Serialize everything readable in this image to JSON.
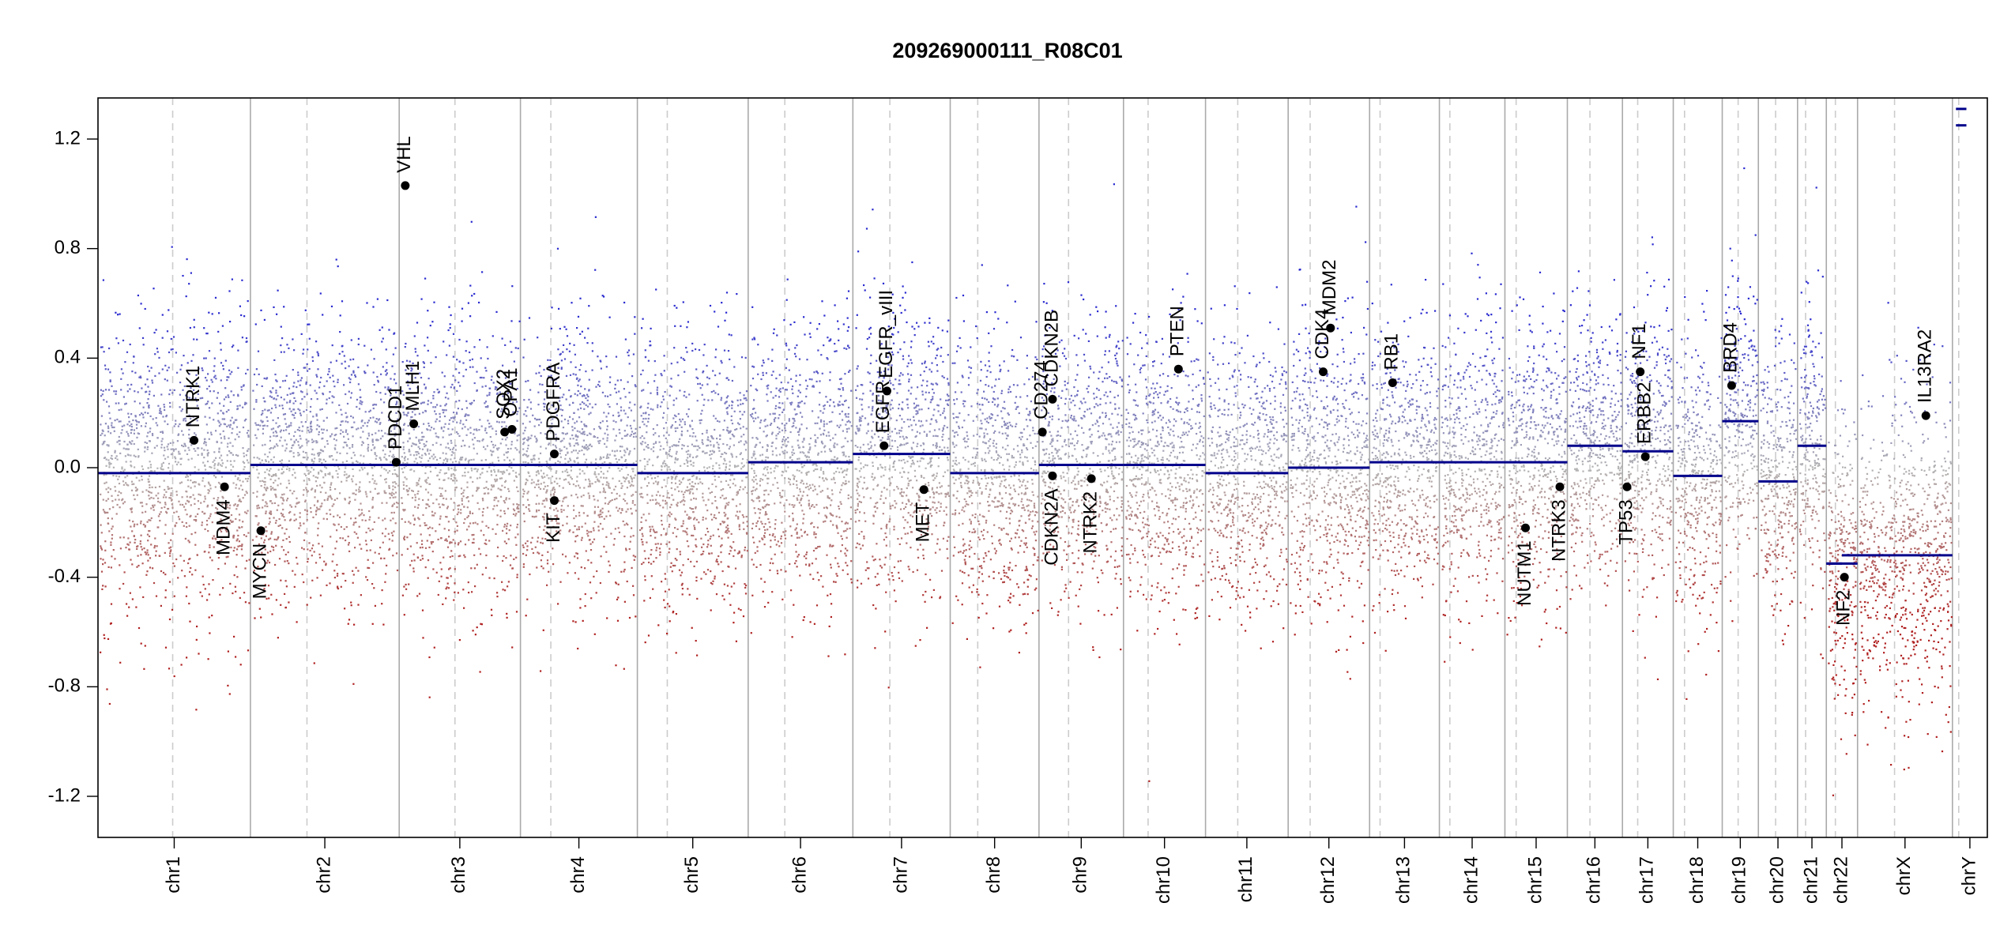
{
  "chart_data": {
    "type": "scatter",
    "title": "209269000111_R08C01",
    "xlabel": "",
    "ylabel": "",
    "ylim": [
      -1.35,
      1.35
    ],
    "yticks": [
      -1.2,
      -0.8,
      -0.4,
      0.0,
      0.4,
      0.8,
      1.2
    ],
    "ytick_labels": [
      "-1.2",
      "-0.8",
      "-0.4",
      "0.0",
      "0.4",
      "0.8",
      "1.2"
    ],
    "grid": false,
    "colors": {
      "gain": "#2a2ad0",
      "neutral": "#b4b4b4",
      "loss": "#b02020",
      "segment": "#00008b",
      "gene_point": "#000000",
      "separator": "#aaaaaa",
      "centromere": "#cccccc"
    },
    "chromosomes": [
      {
        "name": "chr1",
        "length": 249,
        "centromere": 0.49,
        "segment": -0.02,
        "spread": 0.26
      },
      {
        "name": "chr2",
        "length": 243,
        "centromere": 0.38,
        "segment": 0.01,
        "spread": 0.24
      },
      {
        "name": "chr3",
        "length": 198,
        "centromere": 0.46,
        "segment": 0.01,
        "spread": 0.25
      },
      {
        "name": "chr4",
        "length": 191,
        "centromere": 0.26,
        "segment": 0.01,
        "spread": 0.24
      },
      {
        "name": "chr5",
        "length": 181,
        "centromere": 0.27,
        "segment": -0.02,
        "spread": 0.24
      },
      {
        "name": "chr6",
        "length": 171,
        "centromere": 0.35,
        "segment": 0.02,
        "spread": 0.24
      },
      {
        "name": "chr7",
        "length": 159,
        "centromere": 0.38,
        "segment": 0.05,
        "spread": 0.25
      },
      {
        "name": "chr8",
        "length": 145,
        "centromere": 0.31,
        "segment": -0.02,
        "spread": 0.24
      },
      {
        "name": "chr9",
        "length": 138,
        "centromere": 0.35,
        "segment": 0.01,
        "spread": 0.24
      },
      {
        "name": "chr10",
        "length": 134,
        "centromere": 0.3,
        "segment": 0.01,
        "spread": 0.24
      },
      {
        "name": "chr11",
        "length": 135,
        "centromere": 0.39,
        "segment": -0.02,
        "spread": 0.24
      },
      {
        "name": "chr12",
        "length": 133,
        "centromere": 0.27,
        "segment": 0.0,
        "spread": 0.25
      },
      {
        "name": "chr13",
        "length": 114,
        "centromere": 0.15,
        "segment": 0.02,
        "spread": 0.24
      },
      {
        "name": "chr14",
        "length": 107,
        "centromere": 0.16,
        "segment": 0.02,
        "spread": 0.24
      },
      {
        "name": "chr15",
        "length": 102,
        "centromere": 0.18,
        "segment": 0.02,
        "spread": 0.25
      },
      {
        "name": "chr16",
        "length": 90,
        "centromere": 0.41,
        "segment": 0.08,
        "spread": 0.24
      },
      {
        "name": "chr17",
        "length": 83,
        "centromere": 0.3,
        "segment": 0.06,
        "spread": 0.25
      },
      {
        "name": "chr18",
        "length": 80,
        "centromere": 0.23,
        "segment": -0.03,
        "spread": 0.24
      },
      {
        "name": "chr19",
        "length": 59,
        "centromere": 0.44,
        "segment": 0.17,
        "spread": 0.26
      },
      {
        "name": "chr20",
        "length": 64,
        "centromere": 0.44,
        "segment": -0.05,
        "spread": 0.24
      },
      {
        "name": "chr21",
        "length": 47,
        "centromere": 0.28,
        "segment": 0.08,
        "spread": 0.25
      },
      {
        "name": "chr22",
        "length": 51,
        "centromere": 0.29,
        "segment": -0.35,
        "spread": 0.27
      },
      {
        "name": "chrX",
        "length": 155,
        "centromere": 0.39,
        "segment": -0.32,
        "spread": 0.28
      },
      {
        "name": "chrY",
        "length": 57,
        "centromere": 0.18,
        "segment": 1.25,
        "spread": 0.0
      }
    ],
    "segments_extra": [
      {
        "chr": "chr22",
        "start": 0.0,
        "end": 0.5,
        "value": -0.35
      },
      {
        "chr": "chr22",
        "start": 0.5,
        "end": 1.0,
        "value": -0.32
      },
      {
        "chr": "chrY",
        "start": 0.1,
        "end": 0.4,
        "value": 1.31
      },
      {
        "chr": "chrY",
        "start": 0.1,
        "end": 0.4,
        "value": 1.25
      }
    ],
    "genes": [
      {
        "name": "NTRK1",
        "chr": "chr1",
        "pos": 0.63,
        "value": 0.1,
        "label_side": "above"
      },
      {
        "name": "MDM4",
        "chr": "chr1",
        "pos": 0.83,
        "value": -0.07,
        "label_side": "below"
      },
      {
        "name": "MYCN",
        "chr": "chr2",
        "pos": 0.07,
        "value": -0.23,
        "label_side": "below"
      },
      {
        "name": "PDCD1",
        "chr": "chr2",
        "pos": 0.98,
        "value": 0.02,
        "label_side": "above"
      },
      {
        "name": "VHL",
        "chr": "chr3",
        "pos": 0.05,
        "value": 1.03,
        "label_side": "above"
      },
      {
        "name": "MLH1",
        "chr": "chr3",
        "pos": 0.12,
        "value": 0.16,
        "label_side": "above"
      },
      {
        "name": "SOX2",
        "chr": "chr3",
        "pos": 0.87,
        "value": 0.13,
        "label_side": "above"
      },
      {
        "name": "OPA1",
        "chr": "chr3",
        "pos": 0.93,
        "value": 0.14,
        "label_side": "above"
      },
      {
        "name": "PDGFRA",
        "chr": "chr4",
        "pos": 0.29,
        "value": 0.05,
        "label_side": "above"
      },
      {
        "name": "KIT",
        "chr": "chr4",
        "pos": 0.29,
        "value": -0.12,
        "label_side": "below"
      },
      {
        "name": "EGFR",
        "chr": "chr7",
        "pos": 0.32,
        "value": 0.08,
        "label_side": "above"
      },
      {
        "name": "EGFR_vIII",
        "chr": "chr7",
        "pos": 0.35,
        "value": 0.28,
        "label_side": "above"
      },
      {
        "name": "MET",
        "chr": "chr7",
        "pos": 0.73,
        "value": -0.08,
        "label_side": "below"
      },
      {
        "name": "CD274",
        "chr": "chr9",
        "pos": 0.04,
        "value": 0.13,
        "label_side": "above"
      },
      {
        "name": "CDKN2A",
        "chr": "chr9",
        "pos": 0.16,
        "value": -0.03,
        "label_side": "below"
      },
      {
        "name": "CDKN2B",
        "chr": "chr9",
        "pos": 0.16,
        "value": 0.25,
        "label_side": "above"
      },
      {
        "name": "NTRK2",
        "chr": "chr9",
        "pos": 0.62,
        "value": -0.04,
        "label_side": "below"
      },
      {
        "name": "PTEN",
        "chr": "chr10",
        "pos": 0.67,
        "value": 0.36,
        "label_side": "above"
      },
      {
        "name": "CDK4",
        "chr": "chr12",
        "pos": 0.43,
        "value": 0.35,
        "label_side": "above"
      },
      {
        "name": "MDM2",
        "chr": "chr12",
        "pos": 0.52,
        "value": 0.51,
        "label_side": "above"
      },
      {
        "name": "RB1",
        "chr": "chr13",
        "pos": 0.33,
        "value": 0.31,
        "label_side": "above"
      },
      {
        "name": "NUTM1",
        "chr": "chr15",
        "pos": 0.33,
        "value": -0.22,
        "label_side": "below"
      },
      {
        "name": "NTRK3",
        "chr": "chr15",
        "pos": 0.88,
        "value": -0.07,
        "label_side": "below"
      },
      {
        "name": "TP53",
        "chr": "chr17",
        "pos": 0.09,
        "value": -0.07,
        "label_side": "below"
      },
      {
        "name": "ERBB2",
        "chr": "chr17",
        "pos": 0.45,
        "value": 0.04,
        "label_side": "above"
      },
      {
        "name": "NF1",
        "chr": "chr17",
        "pos": 0.35,
        "value": 0.35,
        "label_side": "above"
      },
      {
        "name": "BRD4",
        "chr": "chr19",
        "pos": 0.26,
        "value": 0.3,
        "label_side": "above"
      },
      {
        "name": "NF2",
        "chr": "chr22",
        "pos": 0.58,
        "value": -0.4,
        "label_side": "below"
      },
      {
        "name": "IL13RA2",
        "chr": "chrX",
        "pos": 0.72,
        "value": 0.19,
        "label_side": "above"
      }
    ],
    "gene_labels": {
      "EGFR": "EGFR",
      "EGFR_vIII": "EGFR_vIII"
    }
  }
}
